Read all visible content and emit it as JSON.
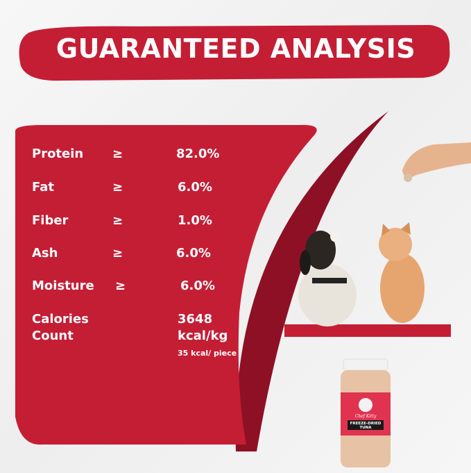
{
  "title": "GUARANTEED ANALYSIS",
  "colors": {
    "brand_red": "#c41e35",
    "dark_red": "#8e1025"
  },
  "nutrients": [
    {
      "label": "Protein",
      "symbol": "≥",
      "value": "82.0%"
    },
    {
      "label": "Fat",
      "symbol": "≥",
      "value": "6.0%"
    },
    {
      "label": "Fiber",
      "symbol": "≥",
      "value": "1.0%"
    },
    {
      "label": "Ash",
      "symbol": "≥",
      "value": "6.0%"
    },
    {
      "label": "Moisture",
      "symbol": "≥",
      "value": "6.0%"
    }
  ],
  "calories": {
    "label_line1": "Calories",
    "label_line2": "Count",
    "value_line1": "3648",
    "value_line2": "kcal/kg",
    "per_piece": "35 kcal/ piece"
  },
  "product": {
    "brand": "Chef Kitty",
    "name_line1": "FREEZE-DRIED",
    "name_line2": "TUNA"
  }
}
